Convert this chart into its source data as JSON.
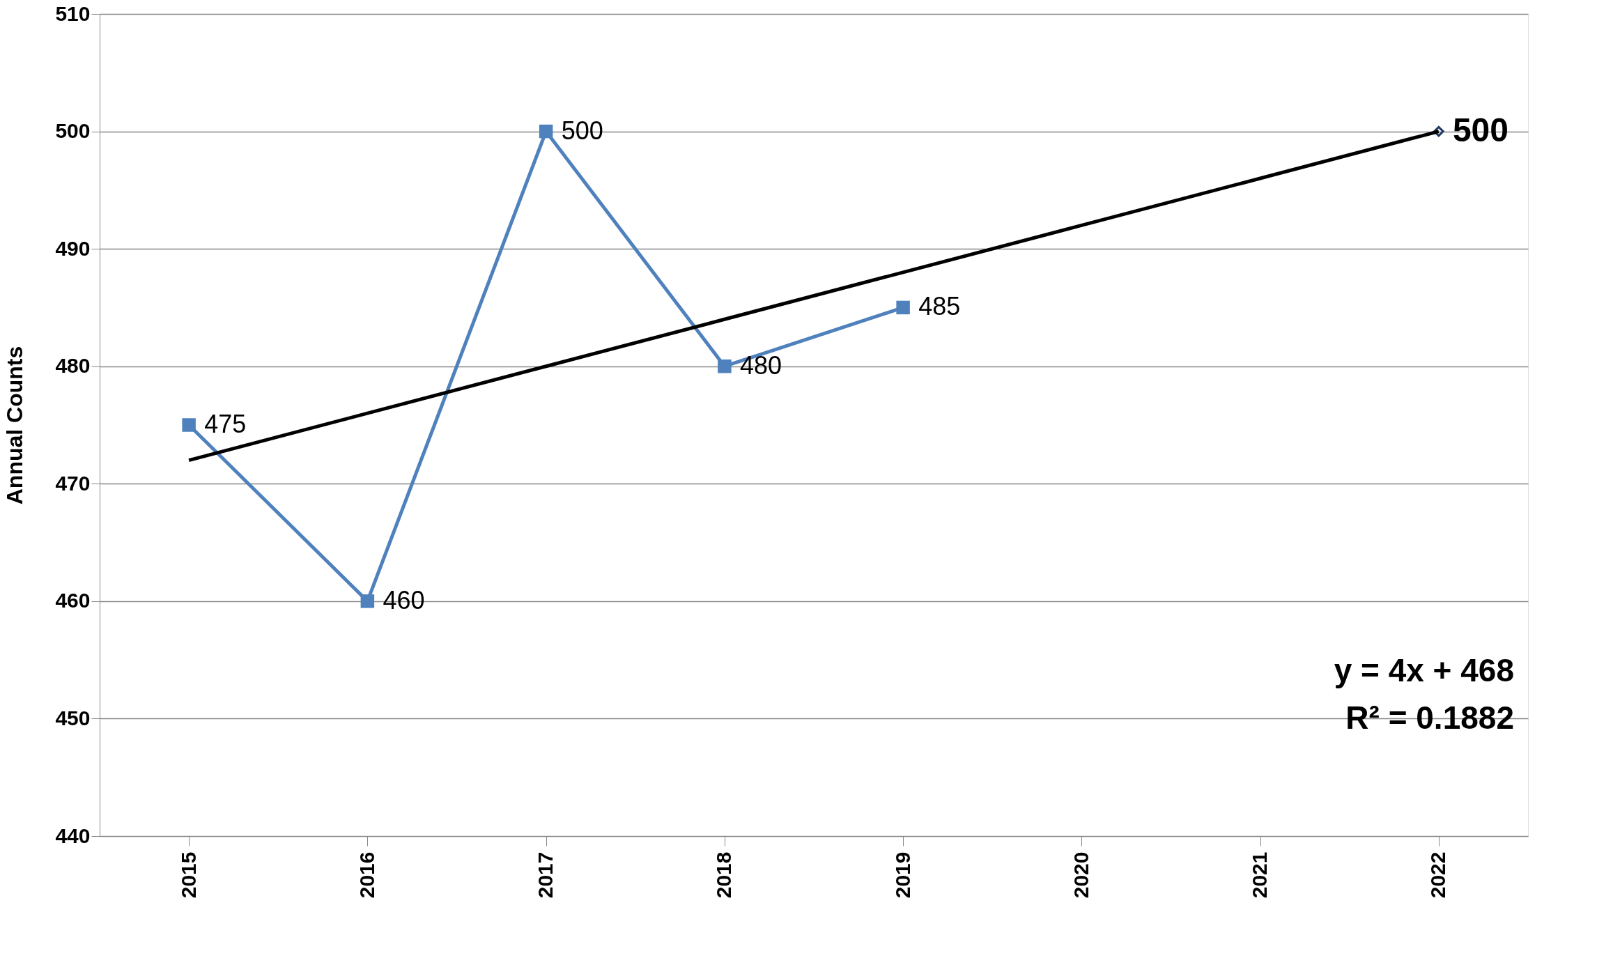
{
  "chart_data": {
    "type": "line",
    "ylabel": "Annual Counts",
    "categories": [
      "2015",
      "2016",
      "2017",
      "2018",
      "2019",
      "2020",
      "2021",
      "2022"
    ],
    "series": [
      {
        "color": "#4f81bd",
        "marker": "square",
        "values": [
          475,
          460,
          500,
          480,
          485,
          null,
          null,
          null
        ],
        "value_labels": [
          "475",
          "460",
          "500",
          "480",
          "485",
          null,
          null,
          null
        ]
      },
      {
        "type": "scatter",
        "color": "#1f3864",
        "marker": "diamond",
        "values": [
          null,
          null,
          null,
          null,
          null,
          null,
          null,
          500
        ],
        "value_labels": [
          null,
          null,
          null,
          null,
          null,
          null,
          null,
          "500"
        ]
      },
      {
        "type": "line",
        "color": "#000000",
        "marker": "none",
        "values": [
          472,
          476,
          480,
          484,
          488,
          492,
          496,
          500
        ]
      }
    ],
    "annotations": [
      "y = 4x + 468",
      "R² = 0.1882"
    ],
    "ylim": [
      440,
      510
    ],
    "yticks": [
      440,
      450,
      460,
      470,
      480,
      490,
      500,
      510
    ],
    "grid": "y"
  }
}
